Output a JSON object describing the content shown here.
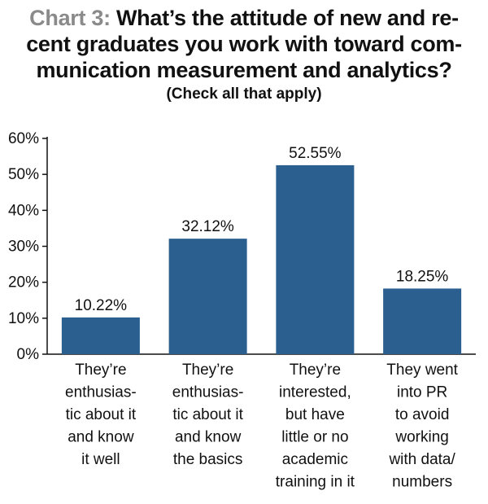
{
  "title": {
    "chart_number": "Chart 3:",
    "lines": [
      "What’s the attitude of new and re-",
      "cent graduates you work with toward com-",
      "munication measurement and analytics?"
    ],
    "subtitle": "(Check all that apply)"
  },
  "chart_data": {
    "type": "bar",
    "title": "Chart 3: What’s the attitude of new and recent graduates you work with toward communication measurement and analytics?",
    "subtitle": "(Check all that apply)",
    "categories": [
      "They’re enthusiastic about it and know it well",
      "They’re enthusiastic about it and know the basics",
      "They’re interested, but have little or no academic training in it",
      "They went into PR to avoid working with data/numbers"
    ],
    "category_lines": [
      [
        "They’re",
        "enthusias-",
        "tic about it",
        "and know",
        "it well"
      ],
      [
        "They’re",
        "enthusias-",
        "tic about it",
        "and know",
        "the basics"
      ],
      [
        "They’re",
        "interested,",
        "but have",
        "little or no",
        "academic",
        "training in it"
      ],
      [
        "They went",
        "into PR",
        "to avoid",
        "working",
        "with data/",
        "numbers"
      ]
    ],
    "values": [
      10.22,
      32.12,
      52.55,
      18.25
    ],
    "value_labels": [
      "10.22%",
      "32.12%",
      "52.55%",
      "18.25%"
    ],
    "ylim": [
      0,
      60
    ],
    "yticks": [
      0,
      10,
      20,
      30,
      40,
      50,
      60
    ],
    "ytick_labels": [
      "0%",
      "10%",
      "20%",
      "30%",
      "40%",
      "50%",
      "60%"
    ],
    "xlabel": "",
    "ylabel": "",
    "grid": false,
    "legend": "none",
    "bar_color": "#2a5f8f",
    "axis_color": "#111111"
  }
}
